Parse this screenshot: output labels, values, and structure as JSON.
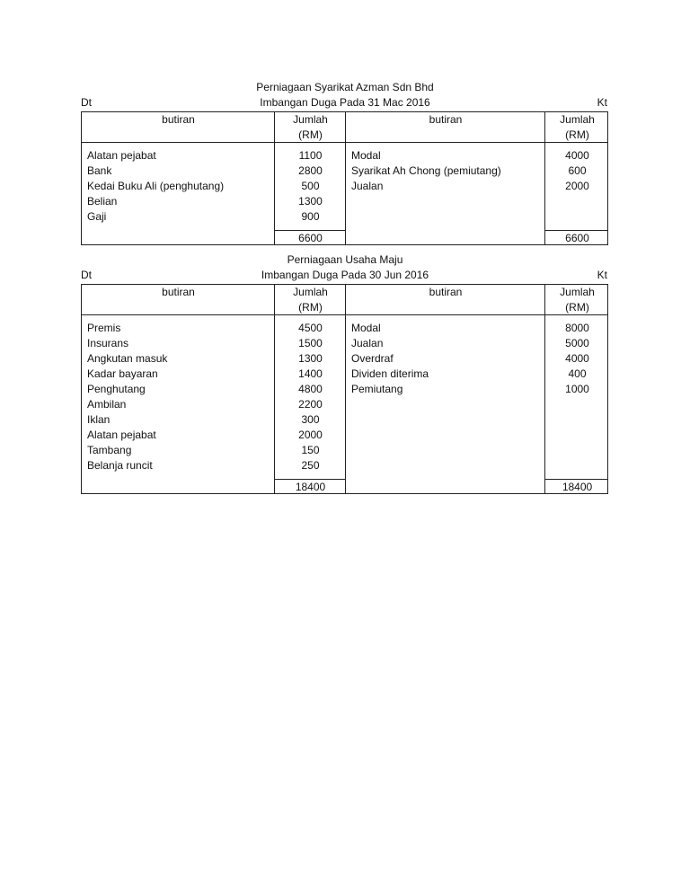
{
  "tables": [
    {
      "company": "Perniagaan Syarikat Azman Sdn Bhd",
      "subtitle": "Imbangan Duga Pada 31 Mac 2016",
      "dt_label": "Dt",
      "kt_label": "Kt",
      "headers": {
        "left_item": "butiran",
        "left_amount": "Jumlah",
        "left_unit": "(RM)",
        "right_item": "butiran",
        "right_amount": "Jumlah",
        "right_unit": "(RM)"
      },
      "debit": [
        {
          "item": "Alatan pejabat",
          "amount": "1100"
        },
        {
          "item": "Bank",
          "amount": "2800"
        },
        {
          "item": "Kedai Buku Ali (penghutang)",
          "amount": "500"
        },
        {
          "item": "Belian",
          "amount": "1300"
        },
        {
          "item": "Gaji",
          "amount": "900"
        }
      ],
      "credit": [
        {
          "item": "Modal",
          "amount": "4000"
        },
        {
          "item": "Syarikat Ah Chong (pemiutang)",
          "amount": "600"
        },
        {
          "item": "Jualan",
          "amount": "2000"
        }
      ],
      "debit_total": "6600",
      "credit_total": "6600"
    },
    {
      "company": "Perniagaan Usaha Maju",
      "subtitle": "Imbangan Duga Pada 30 Jun 2016",
      "dt_label": "Dt",
      "kt_label": "Kt",
      "headers": {
        "left_item": "butiran",
        "left_amount": "Jumlah",
        "left_unit": "(RM)",
        "right_item": "butiran",
        "right_amount": "Jumlah",
        "right_unit": "(RM)"
      },
      "debit": [
        {
          "item": "Premis",
          "amount": "4500"
        },
        {
          "item": "Insurans",
          "amount": "1500"
        },
        {
          "item": "Angkutan masuk",
          "amount": "1300"
        },
        {
          "item": "Kadar bayaran",
          "amount": "1400"
        },
        {
          "item": "Penghutang",
          "amount": "4800"
        },
        {
          "item": "Ambilan",
          "amount": "2200"
        },
        {
          "item": "Iklan",
          "amount": "300"
        },
        {
          "item": "Alatan pejabat",
          "amount": "2000"
        },
        {
          "item": "Tambang",
          "amount": "150"
        },
        {
          "item": "Belanja runcit",
          "amount": "250"
        }
      ],
      "credit": [
        {
          "item": "Modal",
          "amount": "8000"
        },
        {
          "item": "Jualan",
          "amount": "5000"
        },
        {
          "item": "Overdraf",
          "amount": "4000"
        },
        {
          "item": "Dividen diterima",
          "amount": "400"
        },
        {
          "item": "Pemiutang",
          "amount": "1000"
        }
      ],
      "debit_total": "18400",
      "credit_total": "18400"
    }
  ]
}
